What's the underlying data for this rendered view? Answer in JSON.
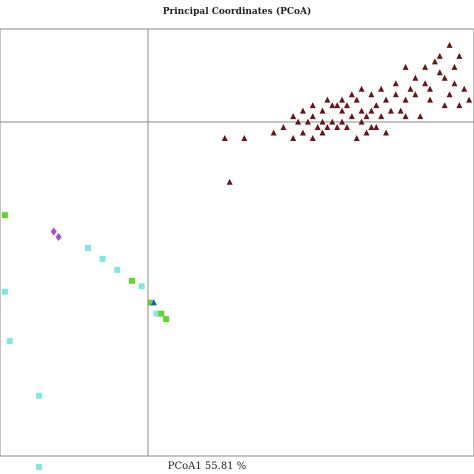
{
  "chart_data": {
    "type": "scatter",
    "title": "Principal Coordinates (PCoA)",
    "xlabel": "PCoA1 55.81 %",
    "ylabel": "",
    "xlim": [
      -0.3,
      0.67
    ],
    "ylim": [
      -0.61,
      0.17
    ],
    "grid": false,
    "legend": "none",
    "reference_lines": {
      "x": 0,
      "y": 0
    },
    "series": [
      {
        "marker": "triangle",
        "color": "#6b1418",
        "points": [
          [
            0.53,
            0.1
          ],
          [
            0.59,
            0.11
          ],
          [
            0.62,
            0.14
          ],
          [
            0.64,
            0.12
          ],
          [
            0.61,
            0.08
          ],
          [
            0.63,
            0.07
          ],
          [
            0.6,
            0.09
          ],
          [
            0.65,
            0.06
          ],
          [
            0.57,
            0.07
          ],
          [
            0.62,
            0.05
          ],
          [
            0.64,
            0.03
          ],
          [
            0.66,
            0.04
          ],
          [
            0.58,
            0.04
          ],
          [
            0.55,
            0.05
          ],
          [
            0.53,
            0.04
          ],
          [
            0.51,
            0.05
          ],
          [
            0.49,
            0.04
          ],
          [
            0.5,
            0.02
          ],
          [
            0.48,
            0.01
          ],
          [
            0.46,
            0.02
          ],
          [
            0.45,
            0.01
          ],
          [
            0.44,
            0.02
          ],
          [
            0.42,
            0.01
          ],
          [
            0.4,
            0.0
          ],
          [
            0.41,
            -0.01
          ],
          [
            0.39,
            -0.01
          ],
          [
            0.37,
            -0.01
          ],
          [
            0.36,
            -0.02
          ],
          [
            0.34,
            -0.03
          ],
          [
            0.35,
            -0.01
          ],
          [
            0.33,
            0.0
          ],
          [
            0.31,
            0.0
          ],
          [
            0.3,
            0.01
          ],
          [
            0.32,
            0.02
          ],
          [
            0.34,
            0.03
          ],
          [
            0.36,
            0.02
          ],
          [
            0.38,
            0.03
          ],
          [
            0.4,
            0.04
          ],
          [
            0.42,
            0.05
          ],
          [
            0.44,
            0.06
          ],
          [
            0.46,
            0.05
          ],
          [
            0.48,
            0.06
          ],
          [
            0.51,
            0.07
          ],
          [
            0.55,
            0.08
          ],
          [
            0.57,
            0.1
          ],
          [
            0.6,
            0.12
          ],
          [
            0.63,
            0.1
          ],
          [
            0.45,
            -0.02
          ],
          [
            0.47,
            -0.01
          ],
          [
            0.43,
            -0.03
          ],
          [
            0.39,
            0.03
          ],
          [
            0.37,
            0.04
          ],
          [
            0.41,
            0.03
          ],
          [
            0.52,
            0.02
          ],
          [
            0.56,
            0.01
          ],
          [
            0.47,
            0.03
          ],
          [
            0.49,
            -0.02
          ],
          [
            0.44,
            0.0
          ],
          [
            0.28,
            -0.01
          ],
          [
            0.36,
            0.0
          ],
          [
            0.43,
            0.04
          ],
          [
            0.38,
            0.0
          ],
          [
            0.54,
            0.06
          ],
          [
            0.61,
            0.03
          ],
          [
            0.2,
            -0.03
          ],
          [
            0.34,
            0.01
          ],
          [
            0.46,
            -0.01
          ],
          [
            0.53,
            0.01
          ],
          [
            0.58,
            0.06
          ],
          [
            0.4,
            0.02
          ],
          [
            0.3,
            -0.03
          ],
          [
            0.32,
            -0.02
          ],
          [
            0.16,
            -0.03
          ],
          [
            0.26,
            -0.02
          ],
          [
            0.17,
            -0.11
          ]
        ]
      },
      {
        "marker": "square",
        "color": "#7fe8e2",
        "points": [
          [
            -0.12,
            -0.23
          ],
          [
            -0.09,
            -0.25
          ],
          [
            -0.06,
            -0.27
          ],
          [
            -0.01,
            -0.3
          ],
          [
            0.02,
            -0.35
          ],
          [
            -0.29,
            -0.31
          ],
          [
            -0.28,
            -0.4
          ],
          [
            -0.22,
            -0.5
          ],
          [
            -0.22,
            -0.63
          ]
        ]
      },
      {
        "marker": "square",
        "color": "#5ed62a",
        "points": [
          [
            -0.29,
            -0.17
          ],
          [
            -0.03,
            -0.29
          ],
          [
            0.01,
            -0.33
          ],
          [
            0.03,
            -0.35
          ],
          [
            0.04,
            -0.36
          ]
        ]
      },
      {
        "marker": "diamond",
        "color": "#a64bd9",
        "points": [
          [
            -0.19,
            -0.2
          ],
          [
            -0.18,
            -0.21
          ]
        ]
      },
      {
        "marker": "triangle",
        "color": "#1f56c8",
        "points": [
          [
            0.015,
            -0.33
          ]
        ]
      }
    ]
  }
}
